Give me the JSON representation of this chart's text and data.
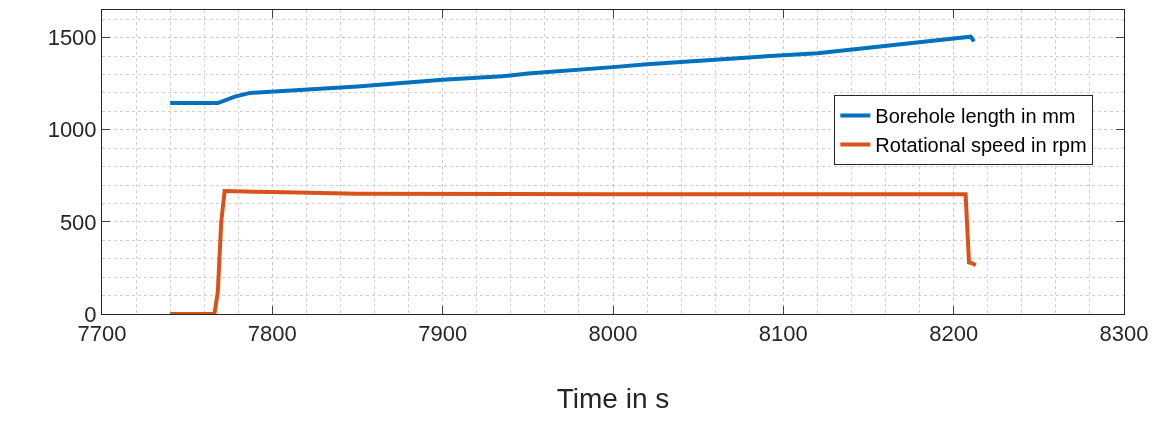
{
  "chart_data": {
    "type": "line",
    "xlabel": "Time in s",
    "xlim": [
      7700,
      8300
    ],
    "xticks": [
      7700,
      7800,
      7900,
      8000,
      8100,
      8200,
      8300
    ],
    "ylim": [
      0,
      1650
    ],
    "yticks": [
      0,
      500,
      1000,
      1500
    ],
    "grid": true,
    "legend": "top right",
    "marker": "none",
    "line_style": "solid",
    "series": [
      {
        "name": "Borehole length in mm",
        "color": "#0072bd",
        "x": [
          7740,
          7768,
          7778,
          7787,
          7850,
          7900,
          7935,
          7950,
          8000,
          8020,
          8100,
          8120,
          8150,
          8200,
          8210,
          8212
        ],
        "values": [
          1145,
          1145,
          1180,
          1200,
          1235,
          1272,
          1290,
          1305,
          1340,
          1355,
          1405,
          1415,
          1445,
          1495,
          1505,
          1480
        ]
      },
      {
        "name": "Rotational speed in rpm",
        "color": "#d95319",
        "x": [
          7740,
          7766,
          7768,
          7770,
          7772,
          7800,
          7850,
          8000,
          8207,
          8209,
          8211,
          8213
        ],
        "values": [
          0,
          0,
          120,
          500,
          667,
          662,
          652,
          650,
          650,
          280,
          275,
          265
        ]
      }
    ]
  }
}
